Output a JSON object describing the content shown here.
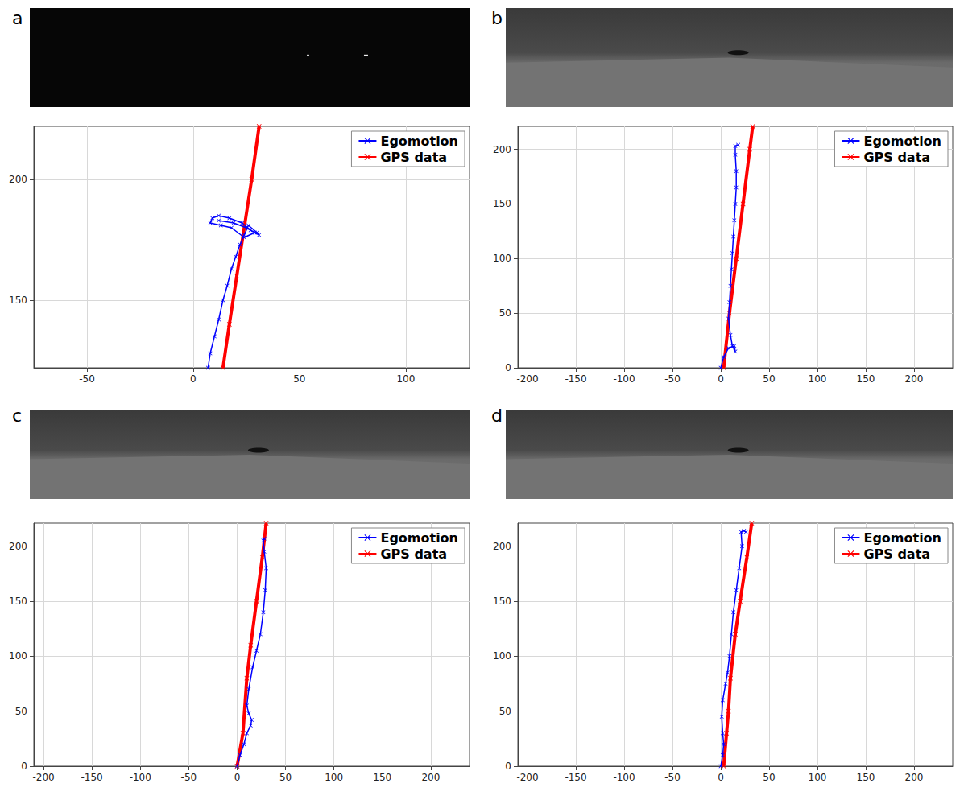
{
  "chart_data": [
    {
      "type": "line",
      "title": "a",
      "xlim": [
        -75,
        130
      ],
      "ylim": [
        122,
        222
      ],
      "xticks": [
        -50,
        0,
        50,
        100
      ],
      "yticks": [
        150,
        200
      ],
      "grid": true,
      "legend": "upper right",
      "series": [
        {
          "name": "Egomotion",
          "color": "#0000ff",
          "marker": "x",
          "line_style": "solid",
          "x": [
            7,
            8,
            10,
            12,
            14,
            16,
            18,
            20,
            22,
            24,
            26,
            30,
            31,
            27,
            23,
            17,
            12,
            9,
            8,
            13,
            18,
            24,
            29,
            25,
            19,
            12
          ],
          "values": [
            122,
            128,
            135,
            142,
            150,
            156,
            163,
            168,
            173,
            177,
            181,
            178,
            177,
            179,
            182,
            184,
            185,
            184,
            182,
            181,
            180,
            176,
            178,
            180,
            182,
            183
          ]
        },
        {
          "name": "GPS data",
          "color": "#ff0000",
          "marker": "x",
          "line_style": "solid",
          "x": [
            14,
            17,
            20.5,
            24,
            27.5,
            31
          ],
          "values": [
            122,
            140,
            160,
            180,
            200,
            222
          ]
        }
      ]
    },
    {
      "type": "line",
      "title": "b",
      "xlim": [
        -210,
        240
      ],
      "ylim": [
        0,
        221
      ],
      "xticks": [
        -200,
        -150,
        -100,
        -50,
        0,
        50,
        100,
        150,
        200
      ],
      "yticks": [
        0,
        50,
        100,
        150,
        200
      ],
      "grid": true,
      "legend": "upper right",
      "series": [
        {
          "name": "Egomotion",
          "color": "#0000ff",
          "marker": "x",
          "line_style": "solid",
          "x": [
            0,
            3,
            8,
            14,
            15,
            12,
            10,
            8,
            9,
            10,
            11,
            12,
            13,
            14,
            15,
            16,
            16,
            15,
            15,
            18
          ],
          "values": [
            0,
            10,
            18,
            20,
            15,
            20,
            30,
            45,
            60,
            75,
            90,
            105,
            120,
            135,
            150,
            165,
            180,
            195,
            203,
            204
          ]
        },
        {
          "name": "GPS data",
          "color": "#ff0000",
          "marker": "x",
          "line_style": "solid",
          "x": [
            3,
            9,
            16,
            23,
            30,
            33
          ],
          "values": [
            0,
            50,
            100,
            150,
            200,
            221
          ]
        }
      ]
    },
    {
      "type": "line",
      "title": "c",
      "xlim": [
        -210,
        240
      ],
      "ylim": [
        0,
        221
      ],
      "xticks": [
        -200,
        -150,
        -100,
        -50,
        0,
        50,
        100,
        150,
        200
      ],
      "yticks": [
        0,
        50,
        100,
        150,
        200
      ],
      "grid": true,
      "legend": "upper right",
      "series": [
        {
          "name": "Egomotion",
          "color": "#0000ff",
          "marker": "x",
          "line_style": "solid",
          "x": [
            0,
            3,
            7,
            10,
            14,
            15,
            12,
            10,
            12,
            16,
            20,
            24,
            27,
            29,
            30,
            28,
            27,
            28
          ],
          "values": [
            0,
            10,
            20,
            30,
            37,
            42,
            48,
            55,
            70,
            90,
            105,
            120,
            140,
            160,
            180,
            195,
            205,
            207
          ]
        },
        {
          "name": "GPS data",
          "color": "#ff0000",
          "marker": "x",
          "line_style": "solid",
          "x": [
            0,
            6,
            10,
            14,
            20,
            26,
            30
          ],
          "values": [
            0,
            30,
            80,
            110,
            150,
            190,
            221
          ]
        }
      ]
    },
    {
      "type": "line",
      "title": "d",
      "xlim": [
        -210,
        240
      ],
      "ylim": [
        0,
        221
      ],
      "xticks": [
        -200,
        -150,
        -100,
        -50,
        0,
        50,
        100,
        150,
        200
      ],
      "yticks": [
        0,
        50,
        100,
        150,
        200
      ],
      "grid": true,
      "legend": "upper right",
      "series": [
        {
          "name": "Egomotion",
          "color": "#0000ff",
          "marker": "x",
          "line_style": "solid",
          "x": [
            0,
            2,
            3,
            2,
            1,
            2,
            5,
            7,
            9,
            11,
            13,
            16,
            19,
            22,
            21,
            24,
            26
          ],
          "values": [
            0,
            10,
            20,
            30,
            45,
            60,
            75,
            85,
            100,
            120,
            140,
            160,
            180,
            200,
            213,
            214,
            213
          ]
        },
        {
          "name": "GPS data",
          "color": "#ff0000",
          "marker": "x",
          "line_style": "solid",
          "x": [
            3,
            6,
            8,
            10,
            15,
            20,
            27,
            32
          ],
          "values": [
            0,
            30,
            50,
            80,
            120,
            150,
            190,
            221
          ]
        }
      ]
    }
  ]
}
